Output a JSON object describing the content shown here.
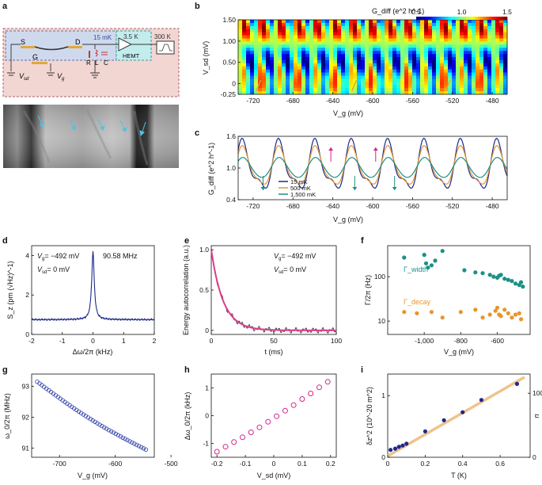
{
  "panels": {
    "a": "a",
    "b": "b",
    "c": "c",
    "d": "d",
    "e": "e",
    "f": "f",
    "g": "g",
    "h": "h",
    "i": "i"
  },
  "colors": {
    "accent_blue": "#1e2a8a",
    "orange": "#e8952c",
    "teal": "#1b9087",
    "magenta": "#d6228c",
    "pink": "#e03c8c",
    "tan": "#f0c38e",
    "pink_bg": "#f2d6d2",
    "blue_bg": "#cfd9ee",
    "cyan_box": "#c3ecec"
  },
  "circuit": {
    "temp_15mK": "15 mK",
    "temp_3_5K": "3.5 K",
    "temp_300K": "300 K",
    "source": "S",
    "drain": "D",
    "gate": "G",
    "hemt": "HEMT",
    "r": "R",
    "l": "L",
    "c": "C",
    "vsd": "V",
    "vsd_sub": "sd",
    "vg": "V",
    "vg_sub": "g"
  },
  "chart_data": [
    {
      "id": "b",
      "type": "heatmap",
      "title": "G_diff (e^2 h^-1)",
      "colorbar": {
        "min": 0.5,
        "mid": 1.0,
        "max": 1.5,
        "labels": [
          "0.5",
          "1.0",
          "1.5"
        ]
      },
      "xlabel": "V_g (mV)",
      "ylabel": "V_sd (mV)",
      "xlim": [
        -735,
        -465
      ],
      "ylim": [
        -0.25,
        1.5
      ],
      "xticks": [
        "-720",
        "-680",
        "-640",
        "-600",
        "-560",
        "-520",
        "-480"
      ],
      "yticks": [
        "1.50",
        "1.00",
        "0.50",
        "0",
        "-0.25"
      ],
      "arrow_x": [
        -713,
        -617,
        -523
      ]
    },
    {
      "id": "c",
      "type": "line",
      "xlabel": "V_g (mV)",
      "ylabel": "G_diff (e^2 h^-1)",
      "xlim": [
        -735,
        -465
      ],
      "ylim": [
        0.4,
        1.6
      ],
      "xticks": [
        "-720",
        "-680",
        "-640",
        "-600",
        "-560",
        "-520",
        "-480"
      ],
      "yticks": [
        "1.6",
        "1.0",
        "0.4"
      ],
      "series": [
        {
          "name": "15 mK",
          "color": "#1e2a8a",
          "amp": 0.55,
          "sharp": 0.85
        },
        {
          "name": "500 mK",
          "color": "#e8952c",
          "amp": 0.42,
          "sharp": 0.6
        },
        {
          "name": "1,500 mK",
          "color": "#1b9087",
          "amp": 0.2,
          "sharp": 0.2
        }
      ],
      "arrows": [
        {
          "x": -710,
          "dir": "down",
          "color": "#1b9087"
        },
        {
          "x": -642,
          "dir": "up",
          "color": "#d6228c"
        },
        {
          "x": -618,
          "dir": "down",
          "color": "#1b9087"
        },
        {
          "x": -597,
          "dir": "up",
          "color": "#d6228c"
        },
        {
          "x": -578,
          "dir": "down",
          "color": "#1b9087"
        }
      ]
    },
    {
      "id": "d",
      "type": "line",
      "xlabel": "Δω/2π (kHz)",
      "ylabel": "S_z (pm (√Hz)^-1)",
      "xlim": [
        -2,
        2
      ],
      "ylim": [
        0,
        4.5
      ],
      "xticks": [
        "-2",
        "-1",
        "0",
        "1",
        "2"
      ],
      "yticks": [
        "4",
        "2",
        "0"
      ],
      "annotations": {
        "vg": "= −492 mV",
        "vsd": "= 0 mV",
        "freq": "90.58 MHz"
      },
      "peak": 4.2,
      "baseline": 0.75,
      "width_khz": 0.05
    },
    {
      "id": "e",
      "type": "line",
      "xlabel": "t (ms)",
      "ylabel": "Energy autocorrelation (a.u.)",
      "xlim": [
        0,
        100
      ],
      "ylim": [
        0,
        1
      ],
      "xticks": [
        "0",
        "50",
        "100"
      ],
      "yticks": [
        "1.0",
        "0.5",
        "0"
      ],
      "annotations": {
        "vg": "= −492 mV",
        "vsd": "= 0 mV"
      },
      "decay_ms": 9.5
    },
    {
      "id": "f",
      "type": "scatter",
      "xlabel": "V_g (mV)",
      "ylabel": "Γ/2π (Hz)",
      "xlim": [
        -1200,
        -420
      ],
      "ylim_log": [
        5,
        500
      ],
      "xticks": [
        "-1,000",
        "-800",
        "-600"
      ],
      "yticks": [
        "100",
        "10"
      ],
      "series": [
        {
          "name": "Γ_width",
          "color": "#1b9087",
          "x": [
            -1110,
            -1000,
            -990,
            -980,
            -960,
            -940,
            -900,
            -780,
            -720,
            -680,
            -640,
            -620,
            -600,
            -590,
            -580,
            -560,
            -540,
            -520,
            -500,
            -480,
            -470,
            -460
          ],
          "y": [
            270,
            310,
            200,
            160,
            180,
            230,
            380,
            140,
            125,
            120,
            110,
            100,
            95,
            105,
            110,
            90,
            85,
            80,
            70,
            65,
            75,
            60
          ]
        },
        {
          "name": "Γ_decay",
          "color": "#e8952c",
          "x": [
            -1110,
            -1040,
            -960,
            -900,
            -800,
            -720,
            -680,
            -640,
            -610,
            -600,
            -590,
            -580,
            -560,
            -540,
            -520,
            -500,
            -480,
            -470
          ],
          "y": [
            16,
            15,
            16,
            12,
            16,
            18,
            12,
            14,
            17,
            20,
            14,
            13,
            18,
            15,
            12,
            14,
            15,
            11
          ]
        }
      ]
    },
    {
      "id": "g",
      "type": "scatter",
      "xlabel": "V_g (mV)",
      "ylabel": "ω_0/2π (MHz)",
      "xlim": [
        -750,
        -530
      ],
      "ylim": [
        90.7,
        93.4
      ],
      "xticks": [
        "-700",
        "-600",
        "-500"
      ],
      "yticks": [
        "93",
        "92",
        "91"
      ],
      "fit": {
        "x0": -740,
        "y0": 93.15,
        "x1": -545,
        "y1": 90.95
      }
    },
    {
      "id": "h",
      "type": "scatter",
      "xlabel": "V_sd (mV)",
      "ylabel": "Δω_0/2π (kHz)",
      "xlim": [
        -0.22,
        0.22
      ],
      "ylim": [
        -1.5,
        1.5
      ],
      "xticks": [
        "-0.2",
        "-0.1",
        "0",
        "0.1",
        "0.2"
      ],
      "yticks": [
        "1",
        "0",
        "-1"
      ],
      "x": [
        -0.2,
        -0.17,
        -0.14,
        -0.11,
        -0.08,
        -0.05,
        -0.02,
        0.01,
        0.04,
        0.07,
        0.1,
        0.13,
        0.16,
        0.19
      ],
      "y": [
        -1.3,
        -1.12,
        -0.95,
        -0.78,
        -0.6,
        -0.42,
        -0.22,
        -0.02,
        0.18,
        0.38,
        0.6,
        0.8,
        1.02,
        1.22
      ]
    },
    {
      "id": "i",
      "type": "scatter",
      "xlabel": "T (K)",
      "ylabel": "δz^2 (10^-20 m^2)",
      "ylabel_right": "n",
      "xlim": [
        0,
        0.76
      ],
      "ylim": [
        0,
        1.35
      ],
      "xticks": [
        "0",
        "0.2",
        "0.4",
        "0.6"
      ],
      "yticks": [
        "1",
        "0"
      ],
      "yticks_right": [
        "100",
        "0"
      ],
      "x": [
        0.015,
        0.04,
        0.06,
        0.08,
        0.1,
        0.2,
        0.3,
        0.4,
        0.5,
        0.69
      ],
      "y": [
        0.12,
        0.14,
        0.17,
        0.19,
        0.22,
        0.42,
        0.6,
        0.73,
        0.93,
        1.19
      ],
      "fit": {
        "x0": 0,
        "y0": 0.02,
        "x1": 0.73,
        "y1": 1.3
      }
    }
  ]
}
